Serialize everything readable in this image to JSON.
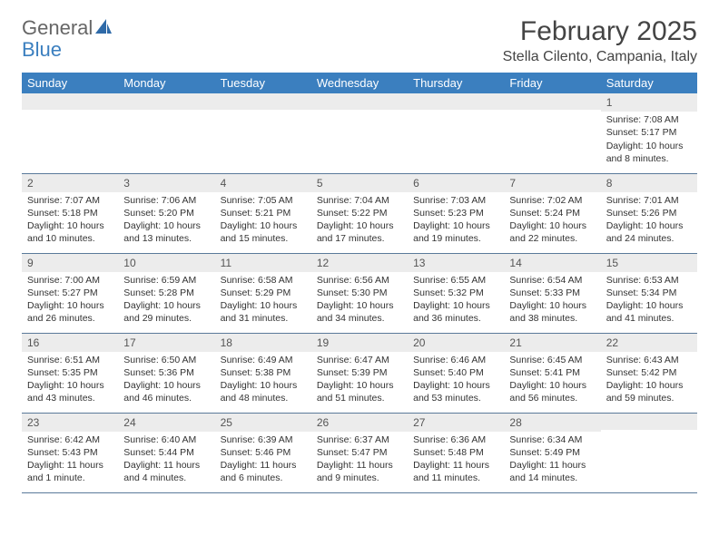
{
  "brand": {
    "part1": "General",
    "part2": "Blue"
  },
  "title": {
    "month": "February 2025",
    "location": "Stella Cilento, Campania, Italy"
  },
  "colors": {
    "header_bg": "#3b7fbf",
    "header_text": "#ffffff",
    "daynum_bg": "#ececec",
    "text": "#333333",
    "rule": "#5a7a9a"
  },
  "weekdays": [
    "Sunday",
    "Monday",
    "Tuesday",
    "Wednesday",
    "Thursday",
    "Friday",
    "Saturday"
  ],
  "weeks": [
    [
      {
        "n": "",
        "sr": "",
        "ss": "",
        "dl": ""
      },
      {
        "n": "",
        "sr": "",
        "ss": "",
        "dl": ""
      },
      {
        "n": "",
        "sr": "",
        "ss": "",
        "dl": ""
      },
      {
        "n": "",
        "sr": "",
        "ss": "",
        "dl": ""
      },
      {
        "n": "",
        "sr": "",
        "ss": "",
        "dl": ""
      },
      {
        "n": "",
        "sr": "",
        "ss": "",
        "dl": ""
      },
      {
        "n": "1",
        "sr": "Sunrise: 7:08 AM",
        "ss": "Sunset: 5:17 PM",
        "dl": "Daylight: 10 hours and 8 minutes."
      }
    ],
    [
      {
        "n": "2",
        "sr": "Sunrise: 7:07 AM",
        "ss": "Sunset: 5:18 PM",
        "dl": "Daylight: 10 hours and 10 minutes."
      },
      {
        "n": "3",
        "sr": "Sunrise: 7:06 AM",
        "ss": "Sunset: 5:20 PM",
        "dl": "Daylight: 10 hours and 13 minutes."
      },
      {
        "n": "4",
        "sr": "Sunrise: 7:05 AM",
        "ss": "Sunset: 5:21 PM",
        "dl": "Daylight: 10 hours and 15 minutes."
      },
      {
        "n": "5",
        "sr": "Sunrise: 7:04 AM",
        "ss": "Sunset: 5:22 PM",
        "dl": "Daylight: 10 hours and 17 minutes."
      },
      {
        "n": "6",
        "sr": "Sunrise: 7:03 AM",
        "ss": "Sunset: 5:23 PM",
        "dl": "Daylight: 10 hours and 19 minutes."
      },
      {
        "n": "7",
        "sr": "Sunrise: 7:02 AM",
        "ss": "Sunset: 5:24 PM",
        "dl": "Daylight: 10 hours and 22 minutes."
      },
      {
        "n": "8",
        "sr": "Sunrise: 7:01 AM",
        "ss": "Sunset: 5:26 PM",
        "dl": "Daylight: 10 hours and 24 minutes."
      }
    ],
    [
      {
        "n": "9",
        "sr": "Sunrise: 7:00 AM",
        "ss": "Sunset: 5:27 PM",
        "dl": "Daylight: 10 hours and 26 minutes."
      },
      {
        "n": "10",
        "sr": "Sunrise: 6:59 AM",
        "ss": "Sunset: 5:28 PM",
        "dl": "Daylight: 10 hours and 29 minutes."
      },
      {
        "n": "11",
        "sr": "Sunrise: 6:58 AM",
        "ss": "Sunset: 5:29 PM",
        "dl": "Daylight: 10 hours and 31 minutes."
      },
      {
        "n": "12",
        "sr": "Sunrise: 6:56 AM",
        "ss": "Sunset: 5:30 PM",
        "dl": "Daylight: 10 hours and 34 minutes."
      },
      {
        "n": "13",
        "sr": "Sunrise: 6:55 AM",
        "ss": "Sunset: 5:32 PM",
        "dl": "Daylight: 10 hours and 36 minutes."
      },
      {
        "n": "14",
        "sr": "Sunrise: 6:54 AM",
        "ss": "Sunset: 5:33 PM",
        "dl": "Daylight: 10 hours and 38 minutes."
      },
      {
        "n": "15",
        "sr": "Sunrise: 6:53 AM",
        "ss": "Sunset: 5:34 PM",
        "dl": "Daylight: 10 hours and 41 minutes."
      }
    ],
    [
      {
        "n": "16",
        "sr": "Sunrise: 6:51 AM",
        "ss": "Sunset: 5:35 PM",
        "dl": "Daylight: 10 hours and 43 minutes."
      },
      {
        "n": "17",
        "sr": "Sunrise: 6:50 AM",
        "ss": "Sunset: 5:36 PM",
        "dl": "Daylight: 10 hours and 46 minutes."
      },
      {
        "n": "18",
        "sr": "Sunrise: 6:49 AM",
        "ss": "Sunset: 5:38 PM",
        "dl": "Daylight: 10 hours and 48 minutes."
      },
      {
        "n": "19",
        "sr": "Sunrise: 6:47 AM",
        "ss": "Sunset: 5:39 PM",
        "dl": "Daylight: 10 hours and 51 minutes."
      },
      {
        "n": "20",
        "sr": "Sunrise: 6:46 AM",
        "ss": "Sunset: 5:40 PM",
        "dl": "Daylight: 10 hours and 53 minutes."
      },
      {
        "n": "21",
        "sr": "Sunrise: 6:45 AM",
        "ss": "Sunset: 5:41 PM",
        "dl": "Daylight: 10 hours and 56 minutes."
      },
      {
        "n": "22",
        "sr": "Sunrise: 6:43 AM",
        "ss": "Sunset: 5:42 PM",
        "dl": "Daylight: 10 hours and 59 minutes."
      }
    ],
    [
      {
        "n": "23",
        "sr": "Sunrise: 6:42 AM",
        "ss": "Sunset: 5:43 PM",
        "dl": "Daylight: 11 hours and 1 minute."
      },
      {
        "n": "24",
        "sr": "Sunrise: 6:40 AM",
        "ss": "Sunset: 5:44 PM",
        "dl": "Daylight: 11 hours and 4 minutes."
      },
      {
        "n": "25",
        "sr": "Sunrise: 6:39 AM",
        "ss": "Sunset: 5:46 PM",
        "dl": "Daylight: 11 hours and 6 minutes."
      },
      {
        "n": "26",
        "sr": "Sunrise: 6:37 AM",
        "ss": "Sunset: 5:47 PM",
        "dl": "Daylight: 11 hours and 9 minutes."
      },
      {
        "n": "27",
        "sr": "Sunrise: 6:36 AM",
        "ss": "Sunset: 5:48 PM",
        "dl": "Daylight: 11 hours and 11 minutes."
      },
      {
        "n": "28",
        "sr": "Sunrise: 6:34 AM",
        "ss": "Sunset: 5:49 PM",
        "dl": "Daylight: 11 hours and 14 minutes."
      },
      {
        "n": "",
        "sr": "",
        "ss": "",
        "dl": ""
      }
    ]
  ]
}
